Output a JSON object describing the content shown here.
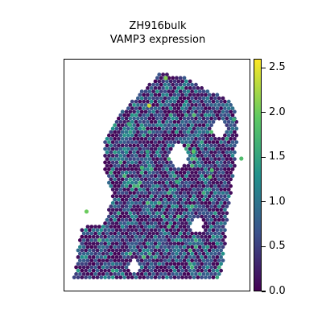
{
  "chart_data": {
    "type": "scatter",
    "title_lines": [
      "ZH916bulk",
      "VAMP3 expression"
    ],
    "xlabel": "",
    "ylabel": "",
    "axes_ticks_visible": false,
    "grid": false,
    "marker": "hexagon",
    "colormap": "viridis",
    "color_range": [
      0.0,
      2.6
    ],
    "colorbar": {
      "position": "right",
      "ticks": [
        0.0,
        0.5,
        1.0,
        1.5,
        2.0,
        2.5
      ],
      "tick_labels": [
        "0.0",
        "0.5",
        "1.0",
        "1.5",
        "2.0",
        "2.5"
      ]
    },
    "spatial_outline_fraction_coords": [
      [
        0.52,
        0.94
      ],
      [
        0.67,
        0.92
      ],
      [
        0.77,
        0.87
      ],
      [
        0.91,
        0.82
      ],
      [
        0.94,
        0.74
      ],
      [
        0.93,
        0.56
      ],
      [
        0.9,
        0.4
      ],
      [
        0.88,
        0.28
      ],
      [
        0.86,
        0.1
      ],
      [
        0.84,
        0.04
      ],
      [
        0.5,
        0.04
      ],
      [
        0.05,
        0.04
      ],
      [
        0.09,
        0.27
      ],
      [
        0.22,
        0.29
      ],
      [
        0.26,
        0.4
      ],
      [
        0.22,
        0.52
      ],
      [
        0.22,
        0.66
      ],
      [
        0.32,
        0.78
      ],
      [
        0.41,
        0.86
      ]
    ],
    "highlight_spots": [
      {
        "fx": 0.46,
        "fy": 0.8,
        "value": 2.4
      },
      {
        "fx": 0.7,
        "fy": 0.6,
        "value": 1.9
      },
      {
        "fx": 0.8,
        "fy": 0.52,
        "value": 1.8
      },
      {
        "fx": 0.96,
        "fy": 0.57,
        "value": 1.8
      },
      {
        "fx": 0.42,
        "fy": 0.53,
        "value": 1.7
      },
      {
        "fx": 0.12,
        "fy": 0.34,
        "value": 2.0
      },
      {
        "fx": 0.55,
        "fy": 0.92,
        "value": 2.1
      },
      {
        "fx": 0.35,
        "fy": 0.72,
        "value": 1.6
      },
      {
        "fx": 0.61,
        "fy": 0.47,
        "value": 1.6
      },
      {
        "fx": 0.79,
        "fy": 0.49,
        "value": 1.9
      },
      {
        "fx": 0.45,
        "fy": 0.6,
        "value": 1.5
      },
      {
        "fx": 0.92,
        "fy": 0.74,
        "value": 1.6
      }
    ]
  }
}
